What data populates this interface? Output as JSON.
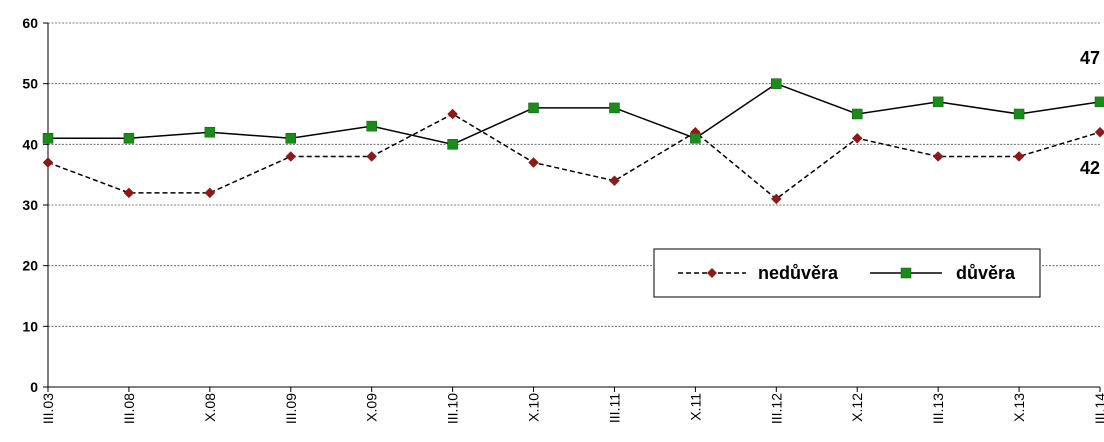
{
  "chart_data": {
    "type": "line",
    "categories": [
      "III.03",
      "III.08",
      "X.08",
      "III.09",
      "X.09",
      "III.10",
      "X.10",
      "III.11",
      "X.11",
      "III.12",
      "X.12",
      "III.13",
      "X.13",
      "III.14"
    ],
    "ylim": [
      0,
      60
    ],
    "yticks": [
      0,
      10,
      20,
      30,
      40,
      50,
      60
    ],
    "grid": true,
    "legend": "inside-right",
    "series": [
      {
        "name": "nedůvěra",
        "color": "#8b1a1a",
        "line": "dashed",
        "marker": "diamond",
        "values": [
          37,
          32,
          32,
          38,
          38,
          45,
          37,
          34,
          42,
          31,
          41,
          38,
          38,
          42
        ],
        "end_label": "42"
      },
      {
        "name": "důvěra",
        "color": "#1a8c1a",
        "line": "solid",
        "marker": "square",
        "values": [
          41,
          41,
          42,
          41,
          43,
          40,
          46,
          46,
          41,
          50,
          45,
          47,
          45,
          47
        ],
        "end_label": "47"
      }
    ]
  }
}
